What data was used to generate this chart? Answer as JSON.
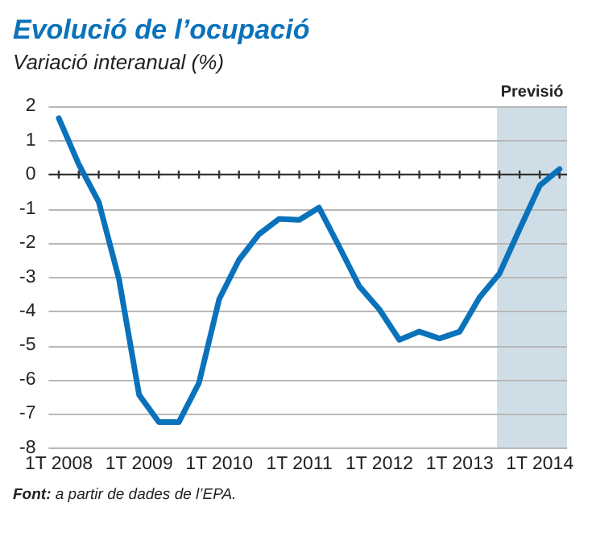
{
  "chart_data": {
    "type": "line",
    "title": "Evolució de l’ocupació",
    "subtitle": "Variació interanual (%)",
    "annotations": [
      "Font: a partir de dades de l’EPA."
    ],
    "x": [
      "2008-01",
      "2008-04",
      "2008-07",
      "2008-10",
      "2009-01",
      "2009-04",
      "2009-07",
      "2009-10",
      "2010-01",
      "2010-04",
      "2010-07",
      "2010-10",
      "2011-01",
      "2011-04",
      "2011-07",
      "2011-10",
      "2012-01",
      "2012-04",
      "2012-07",
      "2012-10",
      "2013-01",
      "2013-04",
      "2013-07",
      "2013-10",
      "2014-01",
      "2014-04"
    ],
    "series": [
      {
        "color": "#0a72bb",
        "values": [
          1.65,
          0.3,
          -0.8,
          -3.05,
          -6.45,
          -7.25,
          -7.25,
          -6.1,
          -3.65,
          -2.5,
          -1.75,
          -1.3,
          -1.33,
          -0.97,
          -2.1,
          -3.27,
          -3.95,
          -4.84,
          -4.6,
          -4.8,
          -4.6,
          -3.6,
          -2.9,
          -1.6,
          -0.32,
          0.16
        ]
      }
    ],
    "xlim": [
      "2007-11-16",
      "2014-05-05"
    ],
    "xticks": [
      {
        "value": "2008-01",
        "label": "1T 2008"
      },
      {
        "value": "2009-01",
        "label": "1T 2009"
      },
      {
        "value": "2010-01",
        "label": "1T 2010"
      },
      {
        "value": "2011-01",
        "label": "1T 2011"
      },
      {
        "value": "2012-01",
        "label": "1T 2012"
      },
      {
        "value": "2013-01",
        "label": "1T 2013"
      },
      {
        "value": "2014-01",
        "label": "1T 2014"
      }
    ],
    "ylim": [
      -8,
      2
    ],
    "yticks": [
      -8,
      -7,
      -6,
      -5,
      -4,
      -3,
      -2,
      -1,
      0,
      1,
      2
    ],
    "ref_lines": [
      {
        "axis": "y",
        "value": 0,
        "color": "#333333"
      }
    ],
    "bands": [
      {
        "axis": "x",
        "from": "2013-06-20",
        "to": "2014-05-05",
        "label": "Previsió",
        "color": "#cfdde6"
      }
    ],
    "grid": "y",
    "legend": false,
    "marker": "none",
    "line_style": "solid"
  }
}
